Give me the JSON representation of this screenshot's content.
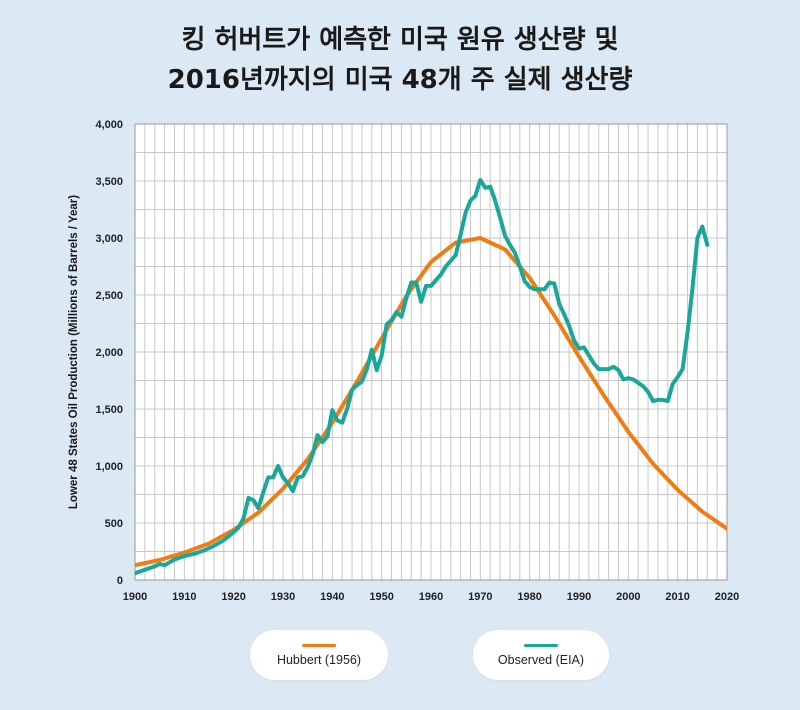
{
  "title": {
    "line1": "킹 허버트가 예측한 미국 원유 생산량 및",
    "line2": "2016년까지의 미국 48개 주 실제 생산량"
  },
  "colors": {
    "background": "#dbe9f4",
    "plot_background": "#ffffff",
    "grid": "#c8c8c8",
    "hubbert": "#f07d14",
    "observed": "#1aa79a"
  },
  "legend": {
    "hubbert_label": "Hubbert (1956)",
    "observed_label": "Observed (EIA)"
  },
  "chart_data": {
    "type": "line",
    "title": "킹 허버트가 예측한 미국 원유 생산량 및 2016년까지의 미국 48개 주 실제 생산량",
    "xlabel": "",
    "ylabel": "Lower 48 States Oil Production (Millions of Barrels / Year)",
    "xlim": [
      1900,
      2020
    ],
    "ylim": [
      0,
      4000
    ],
    "x_ticks": [
      1900,
      1910,
      1920,
      1930,
      1940,
      1950,
      1960,
      1970,
      1980,
      1990,
      2000,
      2010,
      2020
    ],
    "y_ticks": [
      0,
      500,
      1000,
      1500,
      2000,
      2500,
      3000,
      3500,
      4000
    ],
    "y_tick_labels": [
      "0",
      "500",
      "1,000",
      "1,500",
      "2,000",
      "2,500",
      "3,000",
      "3,500",
      "4,000"
    ],
    "grid": true,
    "legend_position": "bottom",
    "series": [
      {
        "name": "Hubbert (1956)",
        "color": "#f07d14",
        "x": [
          1900,
          1905,
          1910,
          1915,
          1920,
          1925,
          1930,
          1935,
          1940,
          1945,
          1950,
          1955,
          1960,
          1965,
          1970,
          1975,
          1980,
          1985,
          1990,
          1995,
          2000,
          2005,
          2010,
          2015,
          2020
        ],
        "y": [
          130,
          175,
          240,
          320,
          440,
          590,
          800,
          1060,
          1380,
          1740,
          2120,
          2490,
          2790,
          2960,
          3000,
          2900,
          2650,
          2320,
          1960,
          1620,
          1300,
          1020,
          790,
          600,
          450
        ]
      },
      {
        "name": "Observed (EIA)",
        "color": "#1aa79a",
        "x": [
          1900,
          1902,
          1904,
          1905,
          1906,
          1908,
          1910,
          1912,
          1914,
          1916,
          1918,
          1920,
          1921,
          1922,
          1923,
          1924,
          1925,
          1926,
          1927,
          1928,
          1929,
          1930,
          1931,
          1932,
          1933,
          1934,
          1935,
          1936,
          1937,
          1938,
          1939,
          1940,
          1941,
          1942,
          1943,
          1944,
          1945,
          1946,
          1947,
          1948,
          1949,
          1950,
          1951,
          1952,
          1953,
          1954,
          1955,
          1956,
          1957,
          1958,
          1959,
          1960,
          1961,
          1962,
          1963,
          1964,
          1965,
          1966,
          1967,
          1968,
          1969,
          1970,
          1971,
          1972,
          1973,
          1974,
          1975,
          1976,
          1977,
          1978,
          1979,
          1980,
          1981,
          1982,
          1983,
          1984,
          1985,
          1986,
          1987,
          1988,
          1989,
          1990,
          1991,
          1992,
          1993,
          1994,
          1995,
          1996,
          1997,
          1998,
          1999,
          2000,
          2001,
          2002,
          2003,
          2004,
          2005,
          2006,
          2007,
          2008,
          2009,
          2010,
          2011,
          2012,
          2013,
          2014,
          2015,
          2016
        ],
        "y": [
          60,
          90,
          120,
          140,
          130,
          180,
          210,
          230,
          260,
          300,
          350,
          420,
          460,
          540,
          720,
          700,
          630,
          770,
          900,
          900,
          1000,
          900,
          850,
          780,
          900,
          910,
          990,
          1100,
          1270,
          1210,
          1260,
          1490,
          1400,
          1380,
          1500,
          1670,
          1710,
          1740,
          1850,
          2020,
          1840,
          1970,
          2240,
          2280,
          2350,
          2310,
          2470,
          2610,
          2610,
          2440,
          2580,
          2580,
          2630,
          2680,
          2750,
          2800,
          2850,
          3030,
          3220,
          3330,
          3370,
          3510,
          3440,
          3450,
          3330,
          3180,
          3020,
          2940,
          2870,
          2750,
          2620,
          2570,
          2550,
          2550,
          2550,
          2610,
          2600,
          2420,
          2330,
          2230,
          2100,
          2030,
          2040,
          1970,
          1900,
          1850,
          1850,
          1850,
          1870,
          1840,
          1760,
          1770,
          1760,
          1730,
          1700,
          1650,
          1570,
          1580,
          1580,
          1570,
          1720,
          1780,
          1850,
          2170,
          2560,
          3000,
          3100,
          2940
        ]
      }
    ]
  }
}
